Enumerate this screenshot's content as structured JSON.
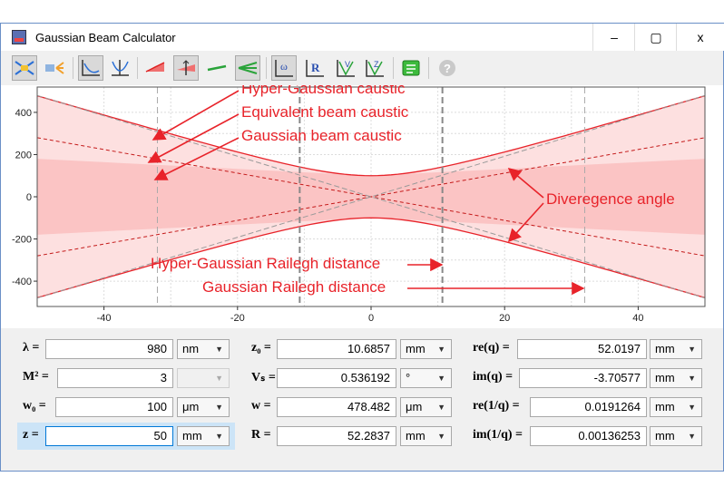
{
  "window": {
    "title": "Gaussian Beam Calculator",
    "minimize": "–",
    "maximize": "▢",
    "close": "x"
  },
  "toolbar": {
    "icons": [
      "beam-icon",
      "light-icon",
      "axes-caustic-icon",
      "axes-parabola-icon",
      "red-beam-icon",
      "red-beam-axis-icon",
      "green-line-icon",
      "green-beam-icon",
      "omega-plot-icon",
      "r-plot-icon",
      "v-plot-icon",
      "z-plot-icon",
      "green-panel-icon",
      "help-icon"
    ],
    "labels": {
      "omega": "ω",
      "R": "R",
      "V": "V",
      "Z": "Z",
      "help": "?"
    }
  },
  "plot": {
    "annotations": {
      "hyper_caustic": "Hyper-Gaussian caustic",
      "equiv_caustic": "Equivalent beam caustic",
      "gauss_caustic": "Gaussian beam caustic",
      "divergence": "Diveregence angle",
      "hyper_rayleigh": "Hyper-Gaussian Railegh distance",
      "gauss_rayleigh": "Gaussian Railegh distance"
    },
    "colors": {
      "caustic": "#e8232a",
      "fill_light": "#fde0e0",
      "fill_mid": "#fbc4c4",
      "arrow": "#e8232a"
    }
  },
  "chart_data": {
    "type": "line",
    "xlim": [
      -50,
      50
    ],
    "ylim": [
      -520,
      520
    ],
    "xticks": [
      -40,
      -20,
      0,
      20,
      40
    ],
    "yticks": [
      400,
      200,
      0,
      -200,
      -400
    ],
    "grid": true,
    "series": [
      {
        "values": [
          [
            -50,
            480
          ],
          [
            -30,
            302
          ],
          [
            -10,
            135
          ],
          [
            0,
            100
          ],
          [
            10,
            135
          ],
          [
            30,
            302
          ],
          [
            50,
            480
          ]
        ]
      },
      {
        "values": [
          [
            -50,
            280
          ],
          [
            0,
            0
          ],
          [
            50,
            280
          ]
        ]
      },
      {
        "values": [
          [
            -50,
            480
          ],
          [
            0,
            0
          ],
          [
            50,
            480
          ]
        ]
      }
    ],
    "rayleigh_hyper": 10.6857,
    "rayleigh_gauss": 32
  },
  "params": {
    "lambda": {
      "label": "λ =",
      "value": "980",
      "unit": "nm"
    },
    "M2": {
      "label": "M² =",
      "value": "3",
      "unit": ""
    },
    "w0": {
      "label": "w₀ =",
      "value": "100",
      "unit": "μm"
    },
    "z": {
      "label": "z =",
      "value": "50",
      "unit": "mm"
    },
    "z0": {
      "label": "z₀ =",
      "value": "10.6857",
      "unit": "mm"
    },
    "Vs": {
      "label": "Vₛ =",
      "value": "0.536192",
      "unit": "°"
    },
    "w": {
      "label": "w =",
      "value": "478.482",
      "unit": "μm"
    },
    "R": {
      "label": "R =",
      "value": "52.2837",
      "unit": "mm"
    },
    "req": {
      "label": "re(q) =",
      "value": "52.0197",
      "unit": "mm"
    },
    "imq": {
      "label": "im(q) =",
      "value": "-3.70577",
      "unit": "mm"
    },
    "reinvq": {
      "label": "re(1/q) =",
      "value": "0.0191264",
      "unit": "mm"
    },
    "iminvq": {
      "label": "im(1/q) =",
      "value": "0.00136253",
      "unit": "mm"
    }
  }
}
